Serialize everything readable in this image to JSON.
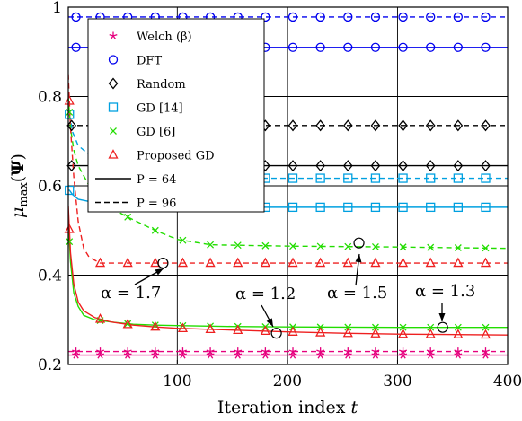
{
  "chart_data": {
    "type": "line",
    "xlabel": "Iteration index t",
    "ylabel": "μmax(Ψ)",
    "xlim": [
      1,
      400
    ],
    "ylim": [
      0.2,
      1.0
    ],
    "xticks": [
      100,
      200,
      300,
      400
    ],
    "yticks": [
      0.2,
      0.4,
      0.6,
      0.8,
      1.0
    ],
    "ytick_labels": [
      "0.2",
      "0.4",
      "0.6",
      "0.8",
      "1"
    ],
    "grid": true,
    "legend_placement": "upper-left",
    "legend": [
      {
        "label": "Welch (β)",
        "marker": "star",
        "color": "#e6007e"
      },
      {
        "label": "DFT",
        "marker": "circle",
        "color": "#0000ee"
      },
      {
        "label": "Random",
        "marker": "diamond",
        "color": "#000000"
      },
      {
        "label": "GD [14]",
        "marker": "square",
        "color": "#00a0e0"
      },
      {
        "label": "GD [6]",
        "marker": "x",
        "color": "#22dd00"
      },
      {
        "label": "Proposed GD",
        "marker": "triangle",
        "color": "#ee2020"
      },
      {
        "label": "P = 64",
        "line": "solid",
        "color": "#000000"
      },
      {
        "label": "P = 96",
        "line": "dashed",
        "color": "#000000"
      }
    ],
    "series": [
      {
        "color": "#e6007e",
        "dash": "solid",
        "marker": "star",
        "marker_x": [
          8,
          30,
          55,
          80,
          105,
          130,
          155,
          180,
          205,
          230,
          255,
          280,
          305,
          330,
          355,
          380
        ],
        "x": [
          1,
          400
        ],
        "y": [
          0.221,
          0.221
        ]
      },
      {
        "color": "#e6007e",
        "dash": "dashed",
        "marker": "star",
        "marker_x": [
          8,
          30,
          55,
          80,
          105,
          130,
          155,
          180,
          205,
          230,
          255,
          280,
          305,
          330,
          355,
          380
        ],
        "x": [
          1,
          400
        ],
        "y": [
          0.229,
          0.229
        ]
      },
      {
        "color": "#0000ee",
        "dash": "solid",
        "marker": "circle",
        "marker_x": [
          8,
          30,
          55,
          80,
          105,
          130,
          155,
          180,
          205,
          230,
          255,
          280,
          305,
          330,
          355,
          380
        ],
        "x": [
          1,
          400
        ],
        "y": [
          0.91,
          0.91
        ]
      },
      {
        "color": "#0000ee",
        "dash": "dashed",
        "marker": "circle",
        "marker_x": [
          8,
          30,
          55,
          80,
          105,
          130,
          155,
          180,
          205,
          230,
          255,
          280,
          305,
          330,
          355,
          380
        ],
        "x": [
          1,
          400
        ],
        "y": [
          0.978,
          0.978
        ]
      },
      {
        "color": "#000000",
        "dash": "solid",
        "marker": "diamond",
        "marker_x": [
          4,
          180,
          205,
          230,
          255,
          280,
          305,
          330,
          355,
          380
        ],
        "x": [
          1,
          400
        ],
        "y": [
          0.645,
          0.645
        ]
      },
      {
        "color": "#000000",
        "dash": "dashed",
        "marker": "diamond",
        "marker_x": [
          4,
          180,
          205,
          230,
          255,
          280,
          305,
          330,
          355,
          380
        ],
        "x": [
          1,
          400
        ],
        "y": [
          0.735,
          0.735
        ]
      },
      {
        "color": "#00a0e0",
        "dash": "solid",
        "marker": "square",
        "marker_x": [
          2,
          180,
          205,
          230,
          255,
          280,
          305,
          330,
          355,
          380
        ],
        "x": [
          1,
          2,
          5,
          10,
          30,
          60,
          100,
          140,
          180,
          260,
          400
        ],
        "y": [
          0.59,
          0.59,
          0.58,
          0.57,
          0.56,
          0.555,
          0.553,
          0.552,
          0.552,
          0.552,
          0.552
        ]
      },
      {
        "color": "#00a0e0",
        "dash": "dashed",
        "marker": "square",
        "marker_x": [
          2,
          180,
          205,
          230,
          255,
          280,
          305,
          330,
          355,
          380
        ],
        "x": [
          1,
          2,
          5,
          10,
          30,
          60,
          100,
          140,
          180,
          260,
          400
        ],
        "y": [
          0.78,
          0.76,
          0.72,
          0.69,
          0.65,
          0.63,
          0.62,
          0.617,
          0.617,
          0.617,
          0.617
        ]
      },
      {
        "color": "#22dd00",
        "dash": "solid",
        "marker": "x",
        "marker_x": [
          2,
          30,
          55,
          80,
          105,
          130,
          155,
          180,
          205,
          230,
          255,
          280,
          305,
          330,
          355,
          380
        ],
        "x": [
          1,
          3,
          6,
          10,
          15,
          25,
          40,
          60,
          80,
          100,
          150,
          200,
          300,
          400
        ],
        "y": [
          0.52,
          0.43,
          0.36,
          0.33,
          0.31,
          0.3,
          0.295,
          0.29,
          0.288,
          0.287,
          0.285,
          0.284,
          0.283,
          0.283
        ]
      },
      {
        "color": "#22dd00",
        "dash": "dashed",
        "marker": "x",
        "marker_x": [
          2,
          55,
          80,
          105,
          130,
          155,
          180,
          205,
          230,
          255,
          280,
          305,
          330,
          355,
          380
        ],
        "x": [
          1,
          3,
          6,
          10,
          20,
          30,
          40,
          55,
          80,
          100,
          130,
          200,
          300,
          400
        ],
        "y": [
          0.8,
          0.73,
          0.68,
          0.645,
          0.6,
          0.57,
          0.55,
          0.53,
          0.5,
          0.48,
          0.468,
          0.465,
          0.463,
          0.46
        ]
      },
      {
        "color": "#ee2020",
        "dash": "solid",
        "marker": "triangle",
        "marker_x": [
          2,
          30,
          55,
          80,
          105,
          130,
          155,
          180,
          205,
          230,
          255,
          280,
          305,
          330,
          355,
          380
        ],
        "x": [
          1,
          3,
          6,
          10,
          15,
          25,
          40,
          60,
          80,
          100,
          150,
          200,
          250,
          300,
          400
        ],
        "y": [
          0.555,
          0.45,
          0.38,
          0.34,
          0.32,
          0.305,
          0.295,
          0.288,
          0.284,
          0.281,
          0.277,
          0.273,
          0.27,
          0.268,
          0.266
        ]
      },
      {
        "color": "#ee2020",
        "dash": "dashed",
        "marker": "triangle",
        "marker_x": [
          2,
          30,
          55,
          80,
          105,
          130,
          155,
          180,
          205,
          230,
          255,
          280,
          305,
          330,
          355,
          380
        ],
        "x": [
          1,
          3,
          6,
          10,
          15,
          20,
          30,
          400
        ],
        "y": [
          0.85,
          0.73,
          0.62,
          0.52,
          0.46,
          0.44,
          0.427,
          0.427
        ]
      }
    ],
    "annotations": [
      {
        "text": "α = 1.7",
        "x": 87,
        "y": 0.427
      },
      {
        "text": "α = 1.2",
        "x": 190,
        "y": 0.27
      },
      {
        "text": "α = 1.5",
        "x": 265,
        "y": 0.472
      },
      {
        "text": "α = 1.3",
        "x": 341,
        "y": 0.283
      }
    ]
  }
}
